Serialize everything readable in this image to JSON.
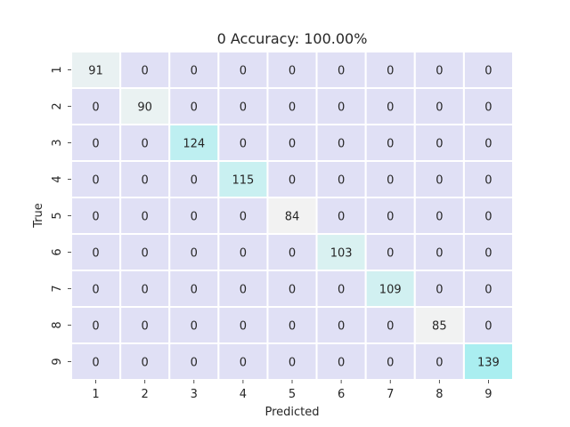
{
  "chart_data": {
    "type": "heatmap",
    "title": "0 Accuracy: 100.00%",
    "xlabel": "Predicted",
    "ylabel": "True",
    "x_categories": [
      "1",
      "2",
      "3",
      "4",
      "5",
      "6",
      "7",
      "8",
      "9"
    ],
    "y_categories": [
      "1",
      "2",
      "3",
      "4",
      "5",
      "6",
      "7",
      "8",
      "9"
    ],
    "values": [
      [
        91,
        0,
        0,
        0,
        0,
        0,
        0,
        0,
        0
      ],
      [
        0,
        90,
        0,
        0,
        0,
        0,
        0,
        0,
        0
      ],
      [
        0,
        0,
        124,
        0,
        0,
        0,
        0,
        0,
        0
      ],
      [
        0,
        0,
        0,
        115,
        0,
        0,
        0,
        0,
        0
      ],
      [
        0,
        0,
        0,
        0,
        84,
        0,
        0,
        0,
        0
      ],
      [
        0,
        0,
        0,
        0,
        0,
        103,
        0,
        0,
        0
      ],
      [
        0,
        0,
        0,
        0,
        0,
        0,
        109,
        0,
        0
      ],
      [
        0,
        0,
        0,
        0,
        0,
        0,
        0,
        85,
        0
      ],
      [
        0,
        0,
        0,
        0,
        0,
        0,
        0,
        0,
        139
      ]
    ],
    "colorbar": false,
    "colors": {
      "zero": "#e0e0f5",
      "low": "#f2f2f2",
      "high": "#aaeef0",
      "grid": "#ffffff",
      "text": "#262626"
    }
  }
}
